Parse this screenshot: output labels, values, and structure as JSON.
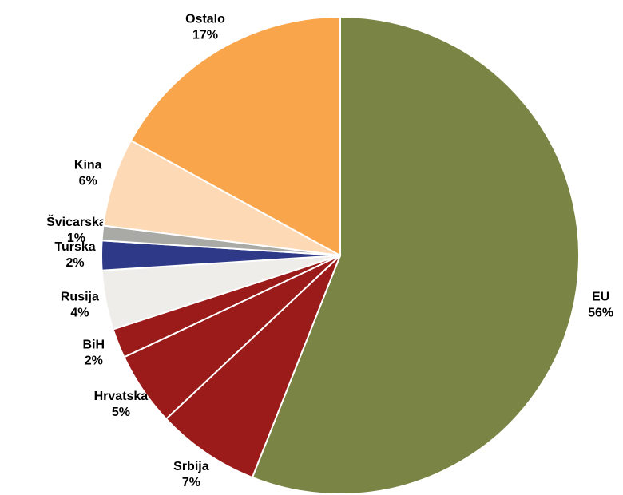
{
  "chart_data": {
    "type": "pie",
    "categories": [
      "EU",
      "Srbija",
      "Hrvatska",
      "BiH",
      "Rusija",
      "Turska",
      "Švicarska",
      "Kina",
      "Ostalo"
    ],
    "values": [
      56,
      7,
      5,
      2,
      4,
      2,
      1,
      6,
      17
    ],
    "value_labels": [
      "56%",
      "7%",
      "5%",
      "2%",
      "4%",
      "2%",
      "1%",
      "6%",
      "17%"
    ],
    "colors": [
      "#7a8444",
      "#9b1b1b",
      "#9b1b1b",
      "#9b1b1b",
      "#eeedea",
      "#2e3a87",
      "#a9aaa5",
      "#fdd9b5",
      "#f9a54c"
    ]
  }
}
